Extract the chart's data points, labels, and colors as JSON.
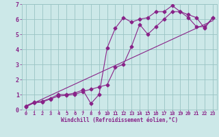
{
  "xlabel": "Windchill (Refroidissement éolien,°C)",
  "bg_color": "#cce8e8",
  "grid_color": "#99c4c4",
  "line_color": "#882288",
  "xlim": [
    -0.5,
    23.5
  ],
  "ylim": [
    0,
    7
  ],
  "xticks": [
    0,
    1,
    2,
    3,
    4,
    5,
    6,
    7,
    8,
    9,
    10,
    11,
    12,
    13,
    14,
    15,
    16,
    17,
    18,
    19,
    20,
    21,
    22,
    23
  ],
  "yticks": [
    0,
    1,
    2,
    3,
    4,
    5,
    6,
    7
  ],
  "series1_x": [
    0,
    1,
    2,
    3,
    4,
    5,
    6,
    7,
    8,
    9,
    10,
    11,
    12,
    13,
    14,
    15,
    16,
    17,
    18,
    19,
    20,
    21,
    22,
    23
  ],
  "series1_y": [
    0.25,
    0.5,
    0.55,
    0.75,
    1.0,
    1.0,
    1.1,
    1.3,
    0.4,
    1.0,
    4.1,
    5.4,
    6.1,
    5.8,
    6.0,
    6.1,
    6.5,
    6.5,
    6.9,
    6.5,
    6.1,
    5.5,
    5.5,
    6.1
  ],
  "series2_x": [
    0,
    1,
    2,
    3,
    4,
    5,
    6,
    7,
    8,
    9,
    10,
    11,
    12,
    13,
    14,
    15,
    16,
    17,
    18,
    19,
    20,
    21,
    22,
    23
  ],
  "series2_y": [
    0.2,
    0.45,
    0.5,
    0.7,
    0.9,
    0.95,
    1.0,
    1.2,
    1.35,
    1.5,
    1.65,
    2.8,
    3.0,
    4.2,
    5.65,
    5.0,
    5.5,
    6.0,
    6.5,
    6.5,
    6.3,
    6.1,
    5.4,
    6.1
  ],
  "series3_x": [
    0,
    23
  ],
  "series3_y": [
    0.2,
    5.9
  ],
  "xlabel_fontsize": 5.5,
  "tick_fontsize": 5.0,
  "ytick_fontsize": 6.0,
  "lw": 0.8,
  "marker_size": 2.5
}
